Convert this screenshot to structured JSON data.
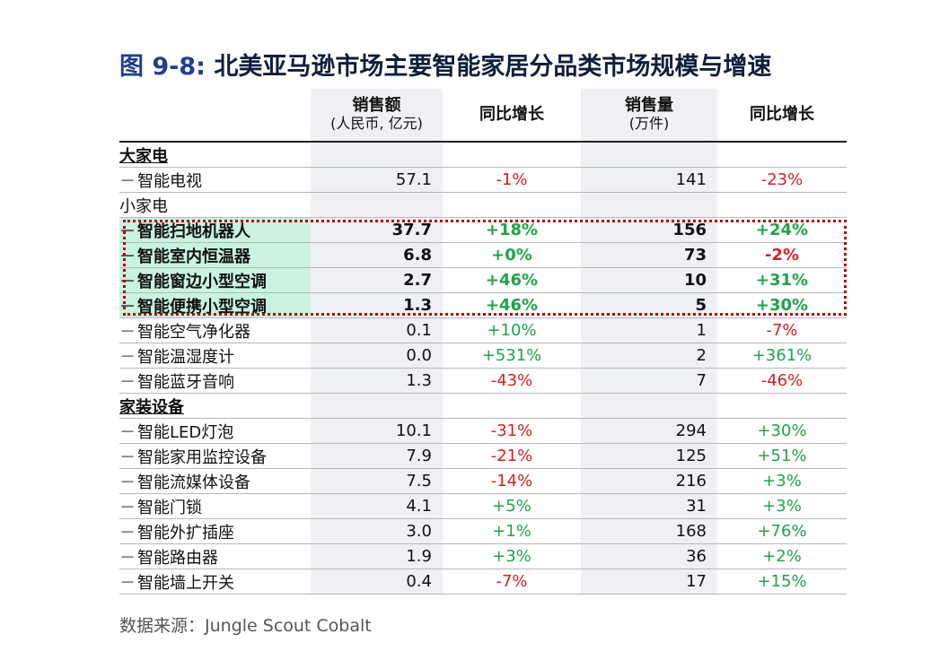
{
  "title_num": "图 9-8:",
  "title_text": "北美亚马逊市场主要智能家居分品类市场规模与增速",
  "headers": {
    "sales": "销售额",
    "sales_unit": "(人民币, 亿元)",
    "yoy1": "同比增长",
    "volume": "销售量",
    "volume_unit": "(万件)",
    "yoy2": "同比增长"
  },
  "source": "数据来源：Jungle Scout Cobalt",
  "colors": {
    "positive": "#1fa34a",
    "negative": "#d32020",
    "highlight": "#c9f2e1",
    "box": "#b00000"
  },
  "chart_data": {
    "type": "table",
    "columns": [
      "销售额 (人民币, 亿元)",
      "同比增长",
      "销售量 (万件)",
      "同比增长"
    ],
    "rows": [
      {
        "category": "大家电",
        "name": "智能电视",
        "sales": "57.1",
        "sales_yoy": "-1%",
        "volume": "141",
        "volume_yoy": "-23%"
      },
      {
        "category": "小家电",
        "name": "智能扫地机器人",
        "sales": "37.7",
        "sales_yoy": "+18%",
        "volume": "156",
        "volume_yoy": "+24%",
        "highlighted": true
      },
      {
        "category": "小家电",
        "name": "智能室内恒温器",
        "sales": "6.8",
        "sales_yoy": "+0%",
        "volume": "73",
        "volume_yoy": "-2%",
        "highlighted": true
      },
      {
        "category": "小家电",
        "name": "智能窗边小型空调",
        "sales": "2.7",
        "sales_yoy": "+46%",
        "volume": "10",
        "volume_yoy": "+31%",
        "highlighted": true
      },
      {
        "category": "小家电",
        "name": "智能便携小型空调",
        "sales": "1.3",
        "sales_yoy": "+46%",
        "volume": "5",
        "volume_yoy": "+30%",
        "highlighted": true
      },
      {
        "category": "小家电",
        "name": "智能空气净化器",
        "sales": "0.1",
        "sales_yoy": "+10%",
        "volume": "1",
        "volume_yoy": "-7%"
      },
      {
        "category": "小家电",
        "name": "智能温湿度计",
        "sales": "0.0",
        "sales_yoy": "+531%",
        "volume": "2",
        "volume_yoy": "+361%"
      },
      {
        "category": "小家电",
        "name": "智能蓝牙音响",
        "sales": "1.3",
        "sales_yoy": "-43%",
        "volume": "7",
        "volume_yoy": "-46%"
      },
      {
        "category": "家装设备",
        "name": "智能LED灯泡",
        "sales": "10.1",
        "sales_yoy": "-31%",
        "volume": "294",
        "volume_yoy": "+30%"
      },
      {
        "category": "家装设备",
        "name": "智能家用监控设备",
        "sales": "7.9",
        "sales_yoy": "-21%",
        "volume": "125",
        "volume_yoy": "+51%"
      },
      {
        "category": "家装设备",
        "name": "智能流媒体设备",
        "sales": "7.5",
        "sales_yoy": "-14%",
        "volume": "216",
        "volume_yoy": "+3%"
      },
      {
        "category": "家装设备",
        "name": "智能门锁",
        "sales": "4.1",
        "sales_yoy": "+5%",
        "volume": "31",
        "volume_yoy": "+3%"
      },
      {
        "category": "家装设备",
        "name": "智能外扩插座",
        "sales": "3.0",
        "sales_yoy": "+1%",
        "volume": "168",
        "volume_yoy": "+76%"
      },
      {
        "category": "家装设备",
        "name": "智能路由器",
        "sales": "1.9",
        "sales_yoy": "+3%",
        "volume": "36",
        "volume_yoy": "+2%"
      },
      {
        "category": "家装设备",
        "name": "智能墙上开关",
        "sales": "0.4",
        "sales_yoy": "-7%",
        "volume": "17",
        "volume_yoy": "+15%"
      }
    ]
  }
}
